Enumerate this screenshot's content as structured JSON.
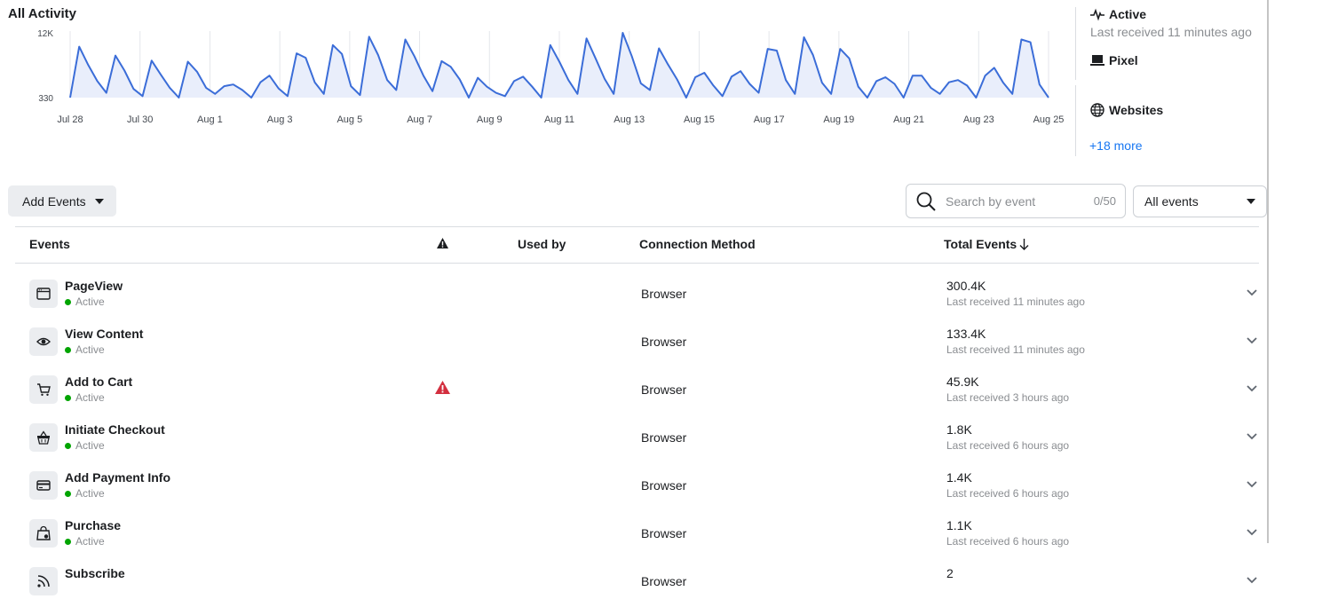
{
  "chart": {
    "title": "All Activity",
    "y_tick_labels": [
      "12K",
      "330"
    ],
    "x_tick_labels": [
      "Jul 28",
      "Jul 30",
      "Aug 1",
      "Aug 3",
      "Aug 5",
      "Aug 7",
      "Aug 9",
      "Aug 11",
      "Aug 13",
      "Aug 15",
      "Aug 17",
      "Aug 19",
      "Aug 21",
      "Aug 23",
      "Aug 25"
    ],
    "line_color": "#3b6dd8",
    "fill_color": "#e9eefb"
  },
  "chart_data": {
    "type": "area",
    "title": "All Activity",
    "xlabel": "",
    "ylabel": "",
    "ylim": [
      330,
      12000
    ],
    "grid": "vertical",
    "x_start": "Jul 28",
    "x_end": "Aug 25",
    "values": [
      330,
      9500,
      6200,
      3300,
      1200,
      7900,
      5200,
      1900,
      600,
      7000,
      4500,
      2100,
      330,
      6800,
      5000,
      2100,
      1000,
      2400,
      2700,
      1700,
      330,
      3100,
      4300,
      2000,
      600,
      8300,
      7500,
      3100,
      1000,
      9800,
      8200,
      2400,
      800,
      11300,
      8000,
      3500,
      1700,
      10800,
      7800,
      4300,
      1500,
      6900,
      5900,
      3600,
      330,
      3900,
      2300,
      1200,
      600,
      3300,
      4100,
      2300,
      330,
      9800,
      6800,
      3500,
      1000,
      11000,
      7400,
      3700,
      1000,
      12000,
      7800,
      2900,
      1700,
      9200,
      6300,
      3600,
      330,
      4000,
      4800,
      2500,
      600,
      4100,
      5100,
      2800,
      1200,
      9100,
      8800,
      3500,
      1000,
      11200,
      8000,
      3000,
      1000,
      9100,
      7400,
      2300,
      330,
      3300,
      4000,
      2800,
      330,
      4300,
      4300,
      2100,
      1000,
      3100,
      3500,
      2500,
      330,
      4300,
      5700,
      3000,
      1000,
      10800,
      10300,
      2700,
      330
    ]
  },
  "side_panel": {
    "status_label": "Active",
    "last_received": "Last received 11 minutes ago",
    "pixel_label": "Pixel",
    "websites_label": "Websites",
    "more_link": "+18 more"
  },
  "toolbar": {
    "add_events_label": "Add Events",
    "search_placeholder": "Search by event",
    "search_count": "0/50",
    "filter_value": "All events"
  },
  "table": {
    "headers": {
      "events": "Events",
      "used_by": "Used by",
      "connection_method": "Connection Method",
      "total_events": "Total Events"
    },
    "rows": [
      {
        "name": "PageView",
        "status": "Active",
        "icon": "browser-window-icon",
        "connection": "Browser",
        "total": "300.4K",
        "received": "Last received 11 minutes ago",
        "warning": false
      },
      {
        "name": "View Content",
        "status": "Active",
        "icon": "eye-icon",
        "connection": "Browser",
        "total": "133.4K",
        "received": "Last received 11 minutes ago",
        "warning": false
      },
      {
        "name": "Add to Cart",
        "status": "Active",
        "icon": "cart-icon",
        "connection": "Browser",
        "total": "45.9K",
        "received": "Last received 3 hours ago",
        "warning": true
      },
      {
        "name": "Initiate Checkout",
        "status": "Active",
        "icon": "basket-icon",
        "connection": "Browser",
        "total": "1.8K",
        "received": "Last received 6 hours ago",
        "warning": false
      },
      {
        "name": "Add Payment Info",
        "status": "Active",
        "icon": "credit-card-icon",
        "connection": "Browser",
        "total": "1.4K",
        "received": "Last received 6 hours ago",
        "warning": false
      },
      {
        "name": "Purchase",
        "status": "Active",
        "icon": "shopping-bag-icon",
        "connection": "Browser",
        "total": "1.1K",
        "received": "Last received 6 hours ago",
        "warning": false
      },
      {
        "name": "Subscribe",
        "status": "",
        "icon": "rss-icon",
        "connection": "Browser",
        "total": "2",
        "received": "",
        "warning": false
      }
    ]
  },
  "colors": {
    "status_green": "#00a400",
    "warning_red": "#d32f3f",
    "link_blue": "#1877f2"
  }
}
